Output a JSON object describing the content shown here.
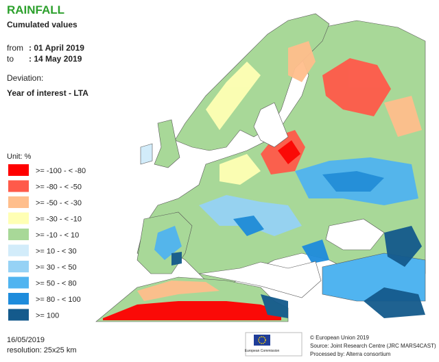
{
  "header": {
    "title": "RAINFALL",
    "subtitle": "Cumulated values",
    "from_label": "from",
    "from_value": ": 01 April 2019",
    "to_label": "to",
    "to_value": ": 14 May 2019",
    "deviation_label": "Deviation:",
    "deviation_value": "Year of interest - LTA"
  },
  "legend": {
    "unit": "Unit: %",
    "items": [
      {
        "label": ">= -100 - < -80",
        "color": "#ff0000"
      },
      {
        "label": ">= -80 - < -50",
        "color": "#ff5a4a"
      },
      {
        "label": ">= -50 - < -30",
        "color": "#ffbe8c"
      },
      {
        "label": ">= -30 - < -10",
        "color": "#ffffb4"
      },
      {
        "label": ">= -10 - < 10",
        "color": "#a8d898"
      },
      {
        "label": ">= 10 - < 30",
        "color": "#d2ecfa"
      },
      {
        "label": ">= 30 - < 50",
        "color": "#96d2f5"
      },
      {
        "label": ">= 50 - < 80",
        "color": "#50b4f0"
      },
      {
        "label": ">= 80 - < 100",
        "color": "#1e8cdc"
      },
      {
        "label": ">= 100",
        "color": "#145a8c"
      }
    ]
  },
  "footer": {
    "date": "16/05/2019",
    "resolution": "resolution: 25x25 km",
    "eu_caption": "European Commission",
    "copyright": "© European Union 2019",
    "source": "Source: Joint Research Centre (JRC MARS4CAST)",
    "processed": "Processed by: Alterra consortium"
  }
}
